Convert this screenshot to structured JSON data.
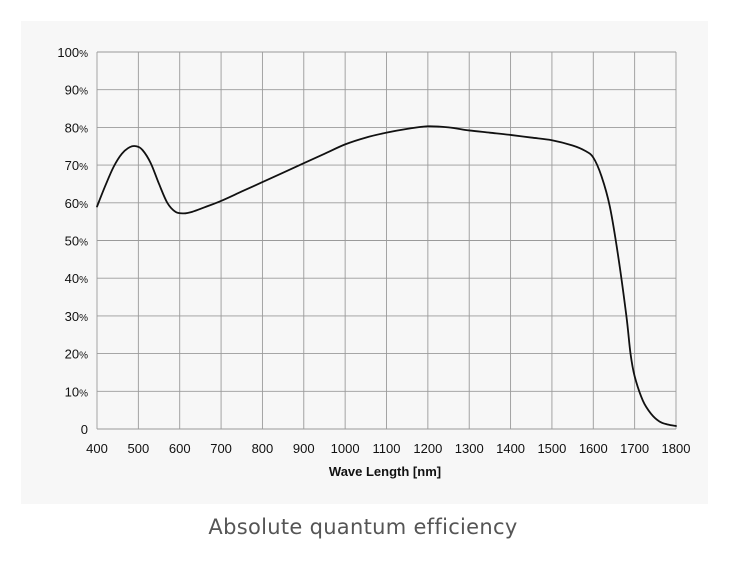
{
  "chart_data": {
    "type": "line",
    "title": "",
    "xlabel": "Wave Length [nm]",
    "ylabel": "",
    "xlim": [
      400,
      1800
    ],
    "ylim": [
      0,
      100
    ],
    "xticks": [
      400,
      500,
      600,
      700,
      800,
      900,
      1000,
      1100,
      1200,
      1300,
      1400,
      1500,
      1600,
      1700,
      1800
    ],
    "xtick_labels": [
      "400",
      "500",
      "600",
      "700",
      "800",
      "900",
      "1000",
      "1100",
      "1200",
      "1300",
      "1400",
      "1500",
      "1600",
      "1700",
      "1800"
    ],
    "yticks": [
      0,
      10,
      20,
      30,
      40,
      50,
      60,
      70,
      80,
      90,
      100
    ],
    "ytick_numbers": [
      "0",
      "10",
      "20",
      "30",
      "40",
      "50",
      "60",
      "70",
      "80",
      "90",
      "100"
    ],
    "ytick_suffixes": [
      "",
      "%",
      "%",
      "%",
      "%",
      "%",
      "%",
      "%",
      "%",
      "%",
      "%"
    ],
    "grid": true,
    "legend": "none",
    "series": [
      {
        "name": "Absolute quantum efficiency",
        "x": [
          400,
          420,
          440,
          460,
          480,
          495,
          510,
          530,
          550,
          570,
          590,
          610,
          630,
          660,
          700,
          750,
          800,
          850,
          900,
          950,
          1000,
          1050,
          1100,
          1150,
          1200,
          1250,
          1300,
          1350,
          1400,
          1450,
          1500,
          1550,
          1580,
          1600,
          1620,
          1640,
          1660,
          1680,
          1690,
          1700,
          1720,
          1740,
          1760,
          1780,
          1800
        ],
        "y": [
          59,
          64.5,
          69.5,
          73,
          74.8,
          75,
          74,
          70.5,
          65,
          60,
          57.6,
          57.2,
          57.6,
          58.8,
          60.5,
          63,
          65.5,
          68,
          70.5,
          73,
          75.5,
          77.3,
          78.6,
          79.6,
          80.3,
          80,
          79.2,
          78.6,
          78,
          77.3,
          76.6,
          75.2,
          73.8,
          72,
          67,
          59,
          46,
          30,
          20,
          14,
          7.5,
          4,
          2,
          1.2,
          0.8
        ]
      }
    ],
    "line_color": "#111111",
    "grid_color": "#9a9a9a"
  },
  "caption": "Absolute quantum efficiency"
}
